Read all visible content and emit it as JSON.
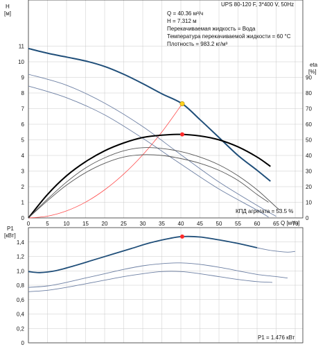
{
  "header_title": "UPS 80-120 F, 3*400 V, 50Hz",
  "info_lines": [
    "Q = 40.36 м³/ч",
    "H = 7.312 м",
    "Перекачиваемая жидкость = Вода",
    "Температура перекачиваемой жидкости = 60 °C",
    "Плотность = 983.2 кг/м³"
  ],
  "colors": {
    "curve_main": "#1f4e79",
    "curve_light": "#6c7fa3",
    "eff_main": "#000000",
    "eff_light": "#555555",
    "system_curve": "#ff4b4b",
    "duty_point_head": "#ffd21f",
    "duty_point": "#ff2a2a",
    "grid": "#c8c8c8"
  },
  "chart_data": [
    {
      "type": "line",
      "name": "head-efficiency",
      "ylabel_left": [
        "H",
        "[м]"
      ],
      "ylabel_right": [
        "eta",
        "[%]"
      ],
      "xlabel": "Q [м³/ч]",
      "xlim": [
        0,
        72
      ],
      "ylim_left": [
        0,
        12
      ],
      "ylim_right": [
        0,
        120
      ],
      "x_ticks": [
        0,
        5,
        10,
        15,
        20,
        25,
        30,
        35,
        40,
        45,
        50,
        55,
        60,
        65,
        70
      ],
      "y_ticks_left": [
        0,
        1,
        2,
        3,
        4,
        5,
        6,
        7,
        8,
        9,
        10,
        11
      ],
      "y_ticks_right": [
        0,
        10,
        20,
        30,
        40,
        50,
        60,
        70,
        80,
        90
      ],
      "efficiency_label": "КПД агрегата = 53.5 %",
      "duty_point": {
        "q": 40.36,
        "h": 7.312,
        "eta": 53.5
      },
      "head_curves": [
        {
          "speed": 1,
          "points": [
            [
              0,
              10.85
            ],
            [
              5,
              10.55
            ],
            [
              10,
              10.3
            ],
            [
              15,
              10.05
            ],
            [
              20,
              9.7
            ],
            [
              25,
              9.2
            ],
            [
              30,
              8.6
            ],
            [
              35,
              7.95
            ],
            [
              40.36,
              7.31
            ],
            [
              45,
              6.3
            ],
            [
              50,
              5.15
            ],
            [
              55,
              4.0
            ],
            [
              60,
              3.05
            ],
            [
              63.5,
              2.35
            ]
          ]
        },
        {
          "speed": 2,
          "points": [
            [
              0,
              9.2
            ],
            [
              10,
              8.5
            ],
            [
              20,
              7.35
            ],
            [
              30,
              5.85
            ],
            [
              40,
              4.05
            ],
            [
              50,
              2.3
            ],
            [
              60,
              0.8
            ],
            [
              65,
              0.1
            ]
          ]
        },
        {
          "speed": 3,
          "points": [
            [
              0,
              8.45
            ],
            [
              10,
              7.7
            ],
            [
              20,
              6.6
            ],
            [
              30,
              5.1
            ],
            [
              40,
              3.45
            ],
            [
              50,
              1.85
            ],
            [
              60,
              0.5
            ],
            [
              63,
              0.05
            ]
          ]
        }
      ],
      "efficiency_curves": [
        {
          "speed": 1,
          "points": [
            [
              0,
              0
            ],
            [
              5,
              15
            ],
            [
              10,
              27
            ],
            [
              15,
              36
            ],
            [
              20,
              43
            ],
            [
              25,
              48
            ],
            [
              30,
              51.5
            ],
            [
              35,
              53
            ],
            [
              40,
              53.5
            ],
            [
              45,
              52.5
            ],
            [
              50,
              50
            ],
            [
              55,
              45.5
            ],
            [
              60,
              39
            ],
            [
              63.5,
              33
            ]
          ]
        },
        {
          "speed": 2,
          "points": [
            [
              0,
              0
            ],
            [
              5,
              12
            ],
            [
              10,
              23
            ],
            [
              15,
              32
            ],
            [
              20,
              38.5
            ],
            [
              25,
              43
            ],
            [
              30,
              45
            ],
            [
              35,
              44.5
            ],
            [
              40,
              42.5
            ],
            [
              45,
              39
            ],
            [
              50,
              34
            ],
            [
              55,
              27
            ],
            [
              60,
              18
            ],
            [
              65,
              7
            ],
            [
              66,
              5
            ]
          ]
        },
        {
          "speed": 3,
          "points": [
            [
              0,
              0
            ],
            [
              5,
              11
            ],
            [
              10,
              21
            ],
            [
              15,
              29
            ],
            [
              20,
              35
            ],
            [
              25,
              39
            ],
            [
              30,
              40.5
            ],
            [
              35,
              40
            ],
            [
              40,
              38
            ],
            [
              45,
              35
            ],
            [
              50,
              30.5
            ],
            [
              55,
              24
            ],
            [
              60,
              15
            ],
            [
              63,
              10
            ]
          ]
        }
      ],
      "system_curve": [
        [
          0,
          0
        ],
        [
          5,
          0.11
        ],
        [
          10,
          0.45
        ],
        [
          15,
          1.01
        ],
        [
          20,
          1.8
        ],
        [
          25,
          2.81
        ],
        [
          30,
          4.04
        ],
        [
          35,
          5.5
        ],
        [
          40.36,
          7.31
        ]
      ]
    },
    {
      "type": "line",
      "name": "power",
      "ylabel": [
        "P1",
        "[кВт]"
      ],
      "xlim": [
        0,
        72
      ],
      "ylim": [
        0,
        1.6
      ],
      "y_ticks": [
        0,
        0.2,
        0.4,
        0.6,
        0.8,
        1.0,
        1.2,
        1.4
      ],
      "y_tick_labels": [
        "0",
        "0,2",
        "0,4",
        "0,6",
        "0,8",
        "1,0",
        "1,2",
        "1,4"
      ],
      "power_label": "P1 = 1.476 кВт",
      "duty_point": {
        "q": 40.36,
        "p": 1.476
      },
      "power_curves": [
        {
          "speed": 1,
          "points": [
            [
              0,
              0.99
            ],
            [
              3,
              0.975
            ],
            [
              7,
              1.0
            ],
            [
              12,
              1.07
            ],
            [
              17,
              1.15
            ],
            [
              22,
              1.23
            ],
            [
              27,
              1.31
            ],
            [
              32,
              1.39
            ],
            [
              37,
              1.45
            ],
            [
              40.36,
              1.476
            ],
            [
              45,
              1.47
            ],
            [
              50,
              1.43
            ],
            [
              55,
              1.38
            ],
            [
              60,
              1.32
            ]
          ],
          "tail": [
            [
              60,
              1.32
            ],
            [
              64,
              1.28
            ],
            [
              68,
              1.26
            ],
            [
              70,
              1.27
            ]
          ]
        },
        {
          "speed": 2,
          "points": [
            [
              0,
              0.77
            ],
            [
              5,
              0.79
            ],
            [
              10,
              0.84
            ],
            [
              15,
              0.9
            ],
            [
              20,
              0.96
            ],
            [
              25,
              1.02
            ],
            [
              30,
              1.07
            ],
            [
              35,
              1.1
            ],
            [
              40,
              1.11
            ],
            [
              45,
              1.09
            ],
            [
              50,
              1.05
            ],
            [
              55,
              1.0
            ],
            [
              60,
              0.95
            ],
            [
              65,
              0.92
            ],
            [
              68,
              0.9
            ]
          ]
        },
        {
          "speed": 3,
          "points": [
            [
              0,
              0.71
            ],
            [
              5,
              0.73
            ],
            [
              10,
              0.77
            ],
            [
              15,
              0.82
            ],
            [
              20,
              0.87
            ],
            [
              25,
              0.92
            ],
            [
              30,
              0.96
            ],
            [
              35,
              0.99
            ],
            [
              40,
              0.99
            ],
            [
              45,
              0.96
            ],
            [
              50,
              0.92
            ],
            [
              55,
              0.88
            ],
            [
              60,
              0.85
            ],
            [
              64,
              0.84
            ]
          ]
        }
      ]
    }
  ]
}
